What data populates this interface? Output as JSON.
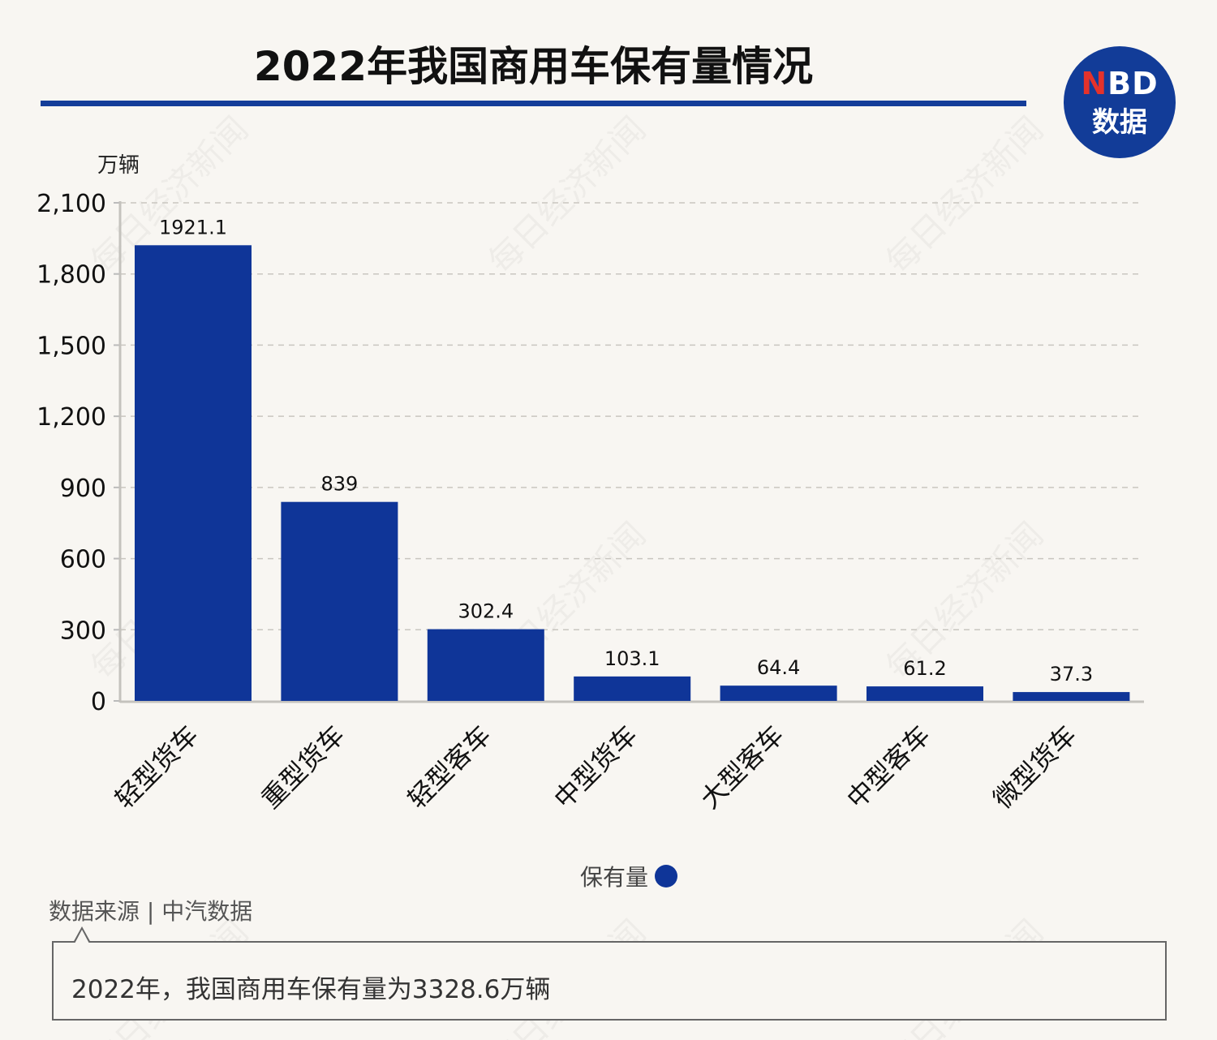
{
  "header": {
    "title": "2022年我国商用车保有量情况",
    "logo_top": "NBD",
    "logo_bottom": "数据",
    "accent_color": "#143d99"
  },
  "chart_data": {
    "type": "bar",
    "title": "2022年我国商用车保有量情况",
    "ylabel": "万辆",
    "xlabel": "",
    "ylim": [
      0,
      2100
    ],
    "yticks": [
      0,
      300,
      600,
      900,
      1200,
      1500,
      1800,
      2100
    ],
    "ytick_labels": [
      "0",
      "300",
      "600",
      "900",
      "1,200",
      "1,500",
      "1,800",
      "2,100"
    ],
    "grid": "horizontal dashed",
    "categories": [
      "轻型货车",
      "重型货车",
      "轻型客车",
      "中型货车",
      "大型客车",
      "中型客车",
      "微型货车"
    ],
    "series": [
      {
        "name": "保有量",
        "color": "#0f3598",
        "values": [
          1921.1,
          839,
          302.4,
          103.1,
          64.4,
          61.2,
          37.3
        ],
        "labels": [
          "1921.1",
          "839",
          "302.4",
          "103.1",
          "64.4",
          "61.2",
          "37.3"
        ]
      }
    ],
    "legend": "bottom-center"
  },
  "watermark": "每日经济新闻",
  "footer": {
    "source": "数据来源 | 中汽数据",
    "note": "2022年，我国商用车保有量为3328.6万辆"
  }
}
